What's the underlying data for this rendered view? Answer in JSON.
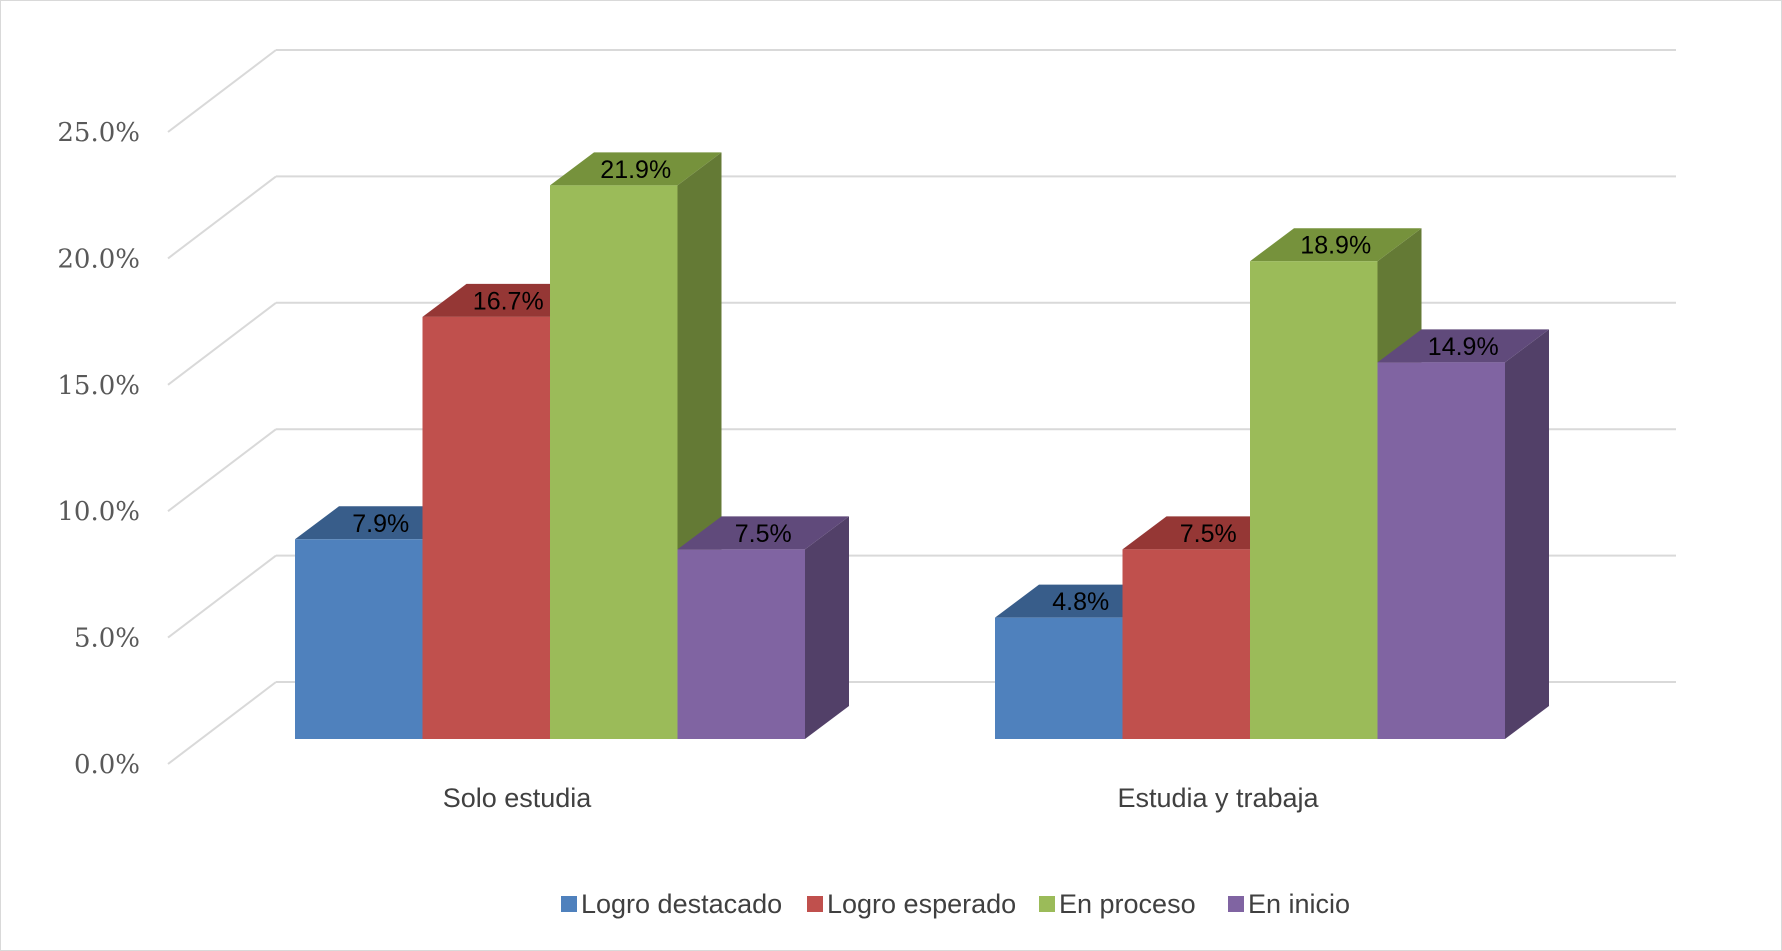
{
  "chart_data": {
    "type": "bar",
    "title": "",
    "xlabel": "",
    "ylabel": "",
    "categories": [
      "Solo estudia",
      "Estudia y trabaja"
    ],
    "series": [
      {
        "name": "Logro destacado",
        "values": [
          7.9,
          4.8
        ],
        "labels": [
          "7.9%",
          "4.8%"
        ],
        "color": "#4f81bd",
        "top_color": "#385d8a",
        "side_color": "#385d8a"
      },
      {
        "name": "Logro esperado",
        "values": [
          16.7,
          7.5
        ],
        "labels": [
          "16.7%",
          "7.5%"
        ],
        "color": "#c0504d",
        "top_color": "#953735",
        "side_color": "#8c3836"
      },
      {
        "name": "En proceso",
        "values": [
          21.9,
          18.9
        ],
        "labels": [
          "21.9%",
          "18.9%"
        ],
        "color": "#9bbb59",
        "top_color": "#76923c",
        "side_color": "#647a35"
      },
      {
        "name": "En inicio",
        "values": [
          7.5,
          14.9
        ],
        "labels": [
          "7.5%",
          "14.9%"
        ],
        "color": "#8064a2",
        "top_color": "#604a7b",
        "side_color": "#524068"
      }
    ],
    "y_ticks": [
      "0.0%",
      "5.0%",
      "10.0%",
      "15.0%",
      "20.0%",
      "25.0%"
    ],
    "ylim": [
      0,
      25
    ],
    "grid": true,
    "legend": "bottom"
  }
}
